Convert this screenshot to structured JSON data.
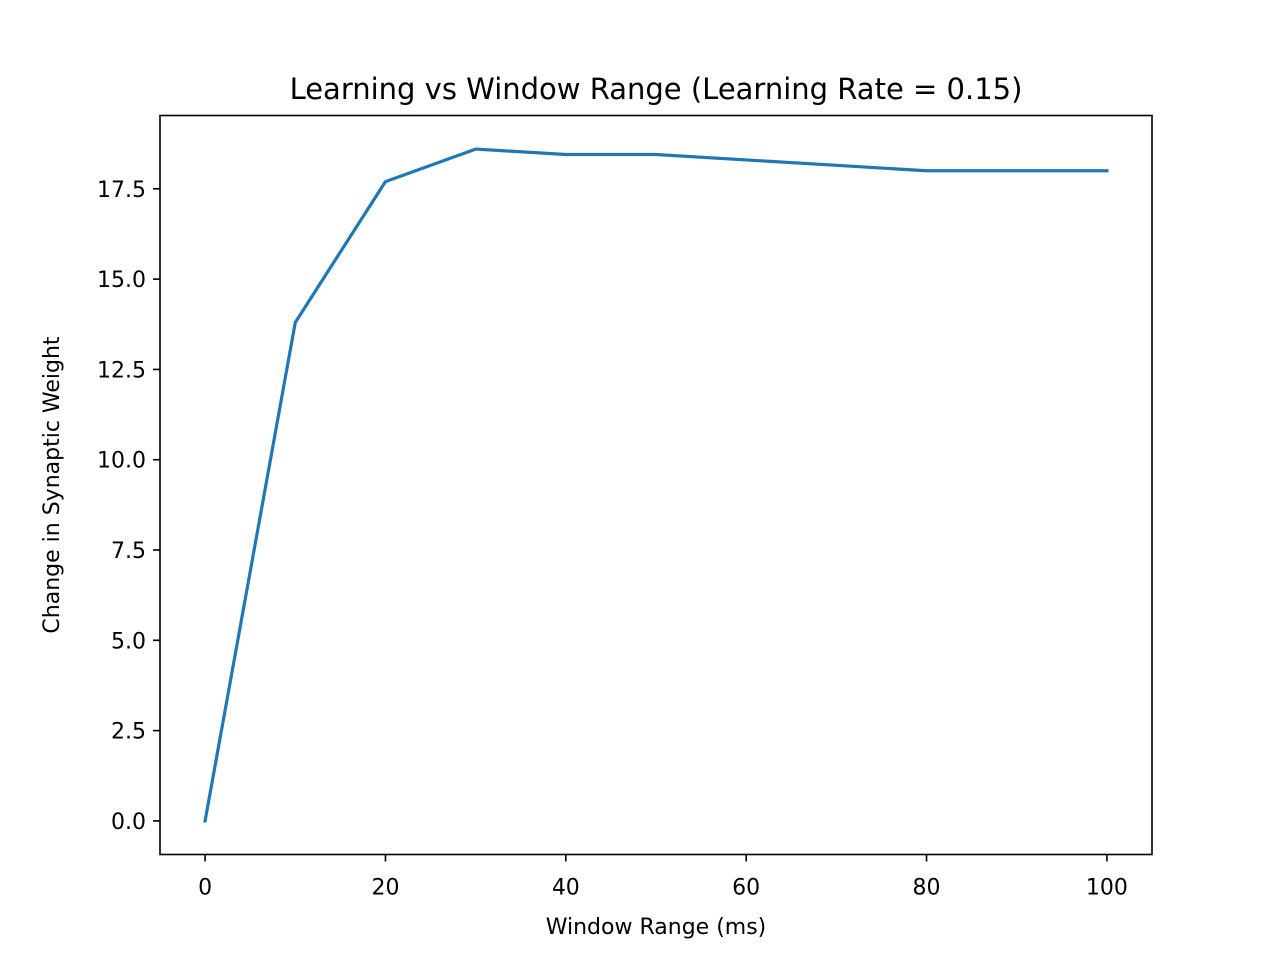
{
  "chart_data": {
    "type": "line",
    "title": "Learning vs Window Range (Learning Rate = 0.15)",
    "xlabel": "Window Range (ms)",
    "ylabel": "Change in Synaptic Weight",
    "xlim": [
      -5,
      105
    ],
    "ylim": [
      -0.93,
      19.53
    ],
    "xticks": [
      0,
      20,
      40,
      60,
      80,
      100
    ],
    "xtick_labels": [
      "0",
      "20",
      "40",
      "60",
      "80",
      "100"
    ],
    "yticks": [
      0.0,
      2.5,
      5.0,
      7.5,
      10.0,
      12.5,
      15.0,
      17.5
    ],
    "ytick_labels": [
      "0.0",
      "2.5",
      "5.0",
      "7.5",
      "10.0",
      "12.5",
      "15.0",
      "17.5"
    ],
    "grid": false,
    "legend": "none",
    "series": [
      {
        "color": "#1f77b4",
        "x": [
          0,
          10,
          20,
          30,
          40,
          50,
          60,
          70,
          80,
          90,
          100
        ],
        "y": [
          0.0,
          13.8,
          17.7,
          18.6,
          18.45,
          18.45,
          18.3,
          18.15,
          18.0,
          18.0,
          18.0
        ]
      }
    ]
  }
}
